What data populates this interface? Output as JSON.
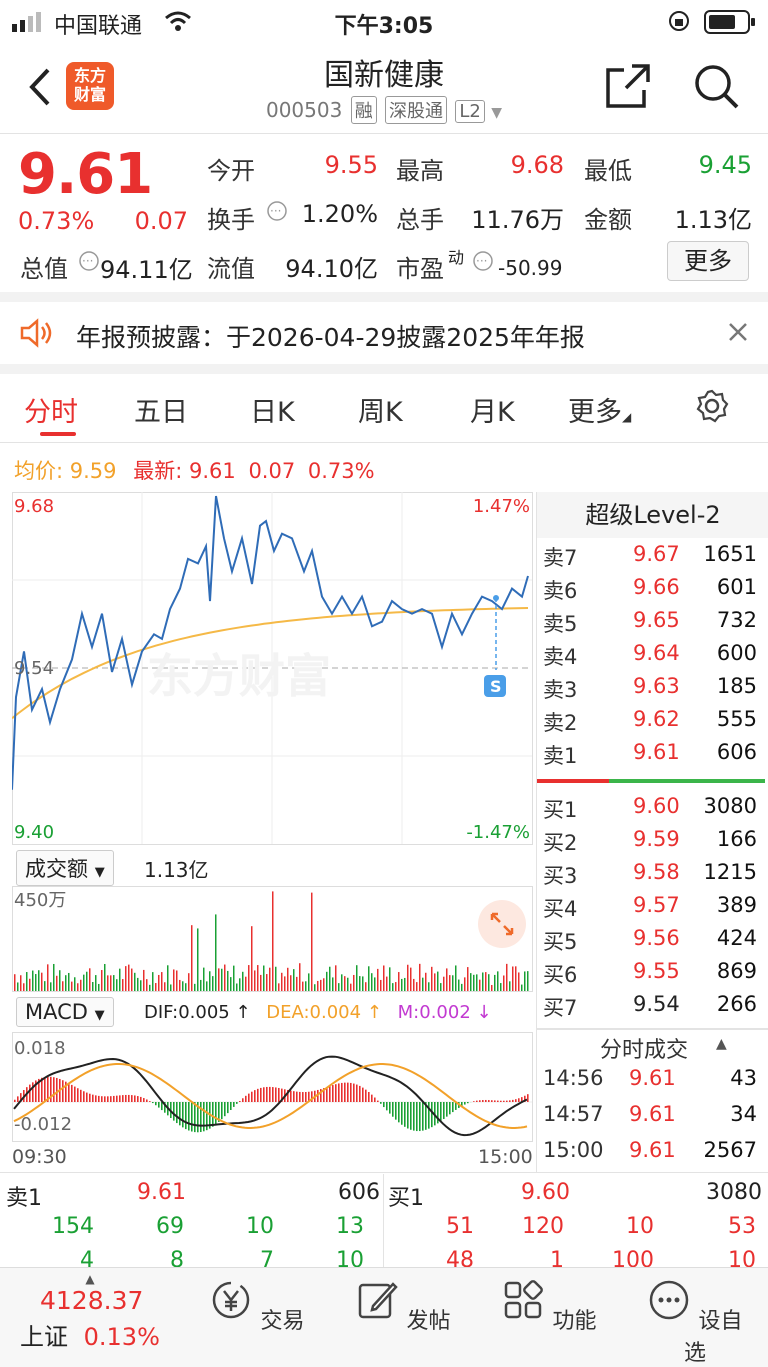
{
  "status_bar": {
    "carrier": "中国联通",
    "time": "下午3:05"
  },
  "header": {
    "logo_text": "东方财富",
    "title": "国新健康",
    "code": "000503",
    "tags": [
      "融",
      "深股通",
      "L2"
    ]
  },
  "quote": {
    "price": "9.61",
    "change_pct": "0.73%",
    "change": "0.07",
    "open_label": "今开",
    "open": "9.55",
    "high_label": "最高",
    "high": "9.68",
    "low_label": "最低",
    "low": "9.45",
    "turnover_label": "换手",
    "turnover": "1.20%",
    "volume_label": "总手",
    "volume": "11.76万",
    "amount_label": "金额",
    "amount": "1.13亿",
    "mktcap_label": "总值",
    "mktcap": "94.11亿",
    "float_label": "流值",
    "float": "94.10亿",
    "pe_label": "市盈",
    "pe_sup": "动",
    "pe": "-50.99",
    "more_label": "更多"
  },
  "notice": {
    "text": "年报预披露：于2026-04-29披露2025年年报"
  },
  "tabs": [
    "分时",
    "五日",
    "日K",
    "周K",
    "月K",
    "更多"
  ],
  "intraday": {
    "avg_label": "均价:",
    "avg": "9.59",
    "latest_label": "最新:",
    "latest": "9.61",
    "latest_change": "0.07",
    "latest_pct": "0.73%",
    "y_max": "9.68",
    "y_min": "9.40",
    "y_mid": "9.54",
    "pct_max": "1.47%",
    "pct_min": "-1.47%",
    "watermark": "东方财富",
    "marker": "S",
    "volume_selector": "成交额",
    "volume_total": "1.13亿",
    "volume_max": "450万",
    "macd_selector": "MACD",
    "dif": "DIF:0.005 ↑",
    "dea": "DEA:0.004 ↑",
    "m": "M:0.002 ↓",
    "macd_max": "0.018",
    "macd_min": "-0.012",
    "time_start": "09:30",
    "time_end": "15:00"
  },
  "order_book": {
    "title": "超级Level-2",
    "asks": [
      {
        "label": "卖7",
        "price": "9.67",
        "vol": "1651"
      },
      {
        "label": "卖6",
        "price": "9.66",
        "vol": "601"
      },
      {
        "label": "卖5",
        "price": "9.65",
        "vol": "732"
      },
      {
        "label": "卖4",
        "price": "9.64",
        "vol": "600"
      },
      {
        "label": "卖3",
        "price": "9.63",
        "vol": "185"
      },
      {
        "label": "卖2",
        "price": "9.62",
        "vol": "555"
      },
      {
        "label": "卖1",
        "price": "9.61",
        "vol": "606"
      }
    ],
    "bids": [
      {
        "label": "买1",
        "price": "9.60",
        "vol": "3080"
      },
      {
        "label": "买2",
        "price": "9.59",
        "vol": "166"
      },
      {
        "label": "买3",
        "price": "9.58",
        "vol": "1215"
      },
      {
        "label": "买4",
        "price": "9.57",
        "vol": "389"
      },
      {
        "label": "买5",
        "price": "9.56",
        "vol": "424"
      },
      {
        "label": "买6",
        "price": "9.55",
        "vol": "869"
      },
      {
        "label": "买7",
        "price": "9.54",
        "vol": "266"
      }
    ]
  },
  "trades": {
    "title": "分时成交",
    "rows": [
      {
        "time": "14:56",
        "price": "9.61",
        "vol": "43"
      },
      {
        "time": "14:57",
        "price": "9.61",
        "vol": "34"
      },
      {
        "time": "15:00",
        "price": "9.61",
        "vol": "2567"
      }
    ]
  },
  "summary": {
    "ask1_label": "卖1",
    "ask1_price": "9.61",
    "ask1_vol": "606",
    "bid1_label": "买1",
    "bid1_price": "9.60",
    "bid1_vol": "3080",
    "left_row1": [
      "154",
      "69",
      "10",
      "13"
    ],
    "right_row1": [
      "51",
      "120",
      "10",
      "53"
    ],
    "left_row2": [
      "4",
      "8",
      "7",
      "10"
    ],
    "right_row2": [
      "48",
      "1",
      "100",
      "10"
    ]
  },
  "tabbar": {
    "index_value": "4128.37",
    "index_name": "上证",
    "index_pct": "0.13%",
    "items": [
      "交易",
      "发帖",
      "功能",
      "设自选"
    ]
  }
}
